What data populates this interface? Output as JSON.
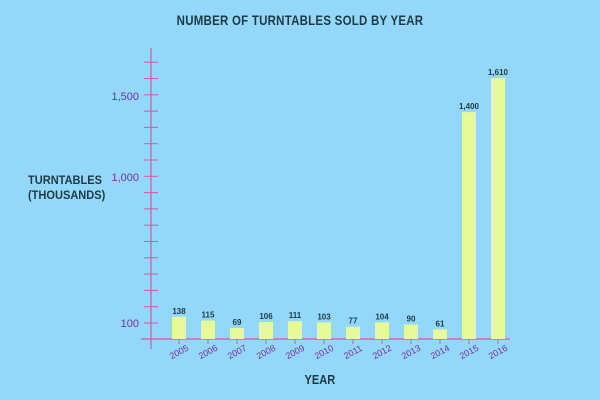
{
  "chart_data": {
    "type": "bar",
    "title": "NUMBER OF TURNTABLES SOLD BY YEAR",
    "xlabel": "YEAR",
    "ylabel": "TURNTABLES\n(THOUSANDS)",
    "categories": [
      "2005",
      "2006",
      "2007",
      "2008",
      "2009",
      "2010",
      "2011",
      "2012",
      "2013",
      "2014",
      "2015",
      "2016"
    ],
    "values": [
      138,
      115,
      69,
      106,
      111,
      103,
      77,
      104,
      90,
      61,
      1400,
      1610
    ],
    "value_labels": [
      "138",
      "115",
      "69",
      "106",
      "111",
      "103",
      "77",
      "104",
      "90",
      "61",
      "1,400",
      "1,610"
    ],
    "y_tick_labels": [
      {
        "value": 100,
        "label": "100"
      },
      {
        "value": 1000,
        "label": "1,000"
      },
      {
        "value": 1500,
        "label": "1,500"
      }
    ],
    "grid": false,
    "colors": {
      "background": "#93d8fb",
      "bar": "#e6fa9a",
      "axis": "#e2539c",
      "tick_label": "#7a2f9a",
      "text": "#1d3a44"
    }
  }
}
